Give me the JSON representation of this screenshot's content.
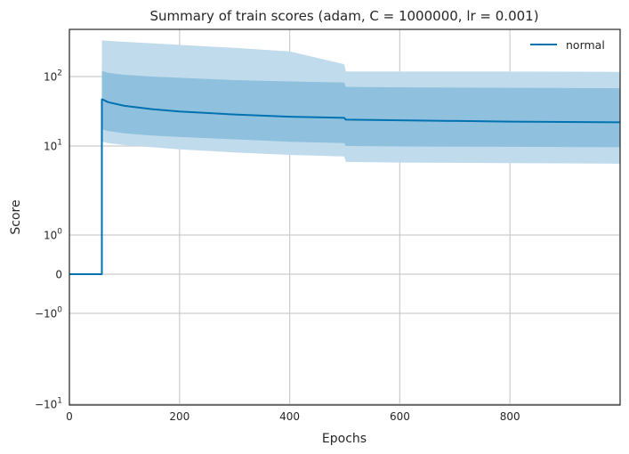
{
  "chart_data": {
    "type": "line",
    "title": "Summary of train scores (adam, C = 1000000, lr = 0.001)",
    "xlabel": "Epochs",
    "ylabel": "Score",
    "xlim": [
      0,
      1000
    ],
    "x_ticks": [
      0,
      200,
      400,
      600,
      800
    ],
    "x_tick_labels": [
      "0",
      "200",
      "400",
      "600",
      "800"
    ],
    "yscale": "symlog",
    "y_ticks": [
      100,
      10,
      1,
      0,
      -1,
      -10
    ],
    "y_tick_labels": [
      {
        "base": "10",
        "exp": "2"
      },
      {
        "base": "10",
        "exp": "1"
      },
      {
        "base": "10",
        "exp": "0"
      },
      {
        "base": "0",
        "exp": ""
      },
      {
        "base": "−10",
        "exp": "0"
      },
      {
        "base": "−10",
        "exp": "1"
      }
    ],
    "grid": true,
    "legend_position": "top-right",
    "colors": {
      "line": "#0072b2",
      "band_inner": "#8fc0dd",
      "band_outer": "#c0dbec"
    },
    "series": [
      {
        "name": "normal",
        "x": [
          0,
          59,
          59,
          60,
          70,
          100,
          150,
          200,
          300,
          400,
          499,
          502,
          600,
          800,
          1000
        ],
        "mean": [
          0,
          0,
          47,
          47,
          43,
          38,
          34,
          31.5,
          28.5,
          26.5,
          25.5,
          24,
          23.5,
          22.5,
          22
        ],
        "inner_upper": [
          null,
          null,
          123,
          120,
          113,
          106,
          100,
          96,
          89,
          85,
          82,
          71,
          70,
          69,
          68
        ],
        "inner_lower": [
          null,
          null,
          17.5,
          17.3,
          16.5,
          15.3,
          14.2,
          13.5,
          12.5,
          11.5,
          11,
          10,
          9.9,
          9.8,
          9.7
        ],
        "outer_upper": [
          null,
          null,
          330,
          330,
          325,
          315,
          300,
          285,
          258,
          230,
          150,
          118,
          118,
          118,
          117
        ],
        "outer_lower": [
          null,
          null,
          11.8,
          11.5,
          11,
          10.3,
          9.7,
          9.2,
          8.5,
          8,
          7.7,
          6.7,
          6.6,
          6.5,
          6.4
        ]
      }
    ]
  }
}
